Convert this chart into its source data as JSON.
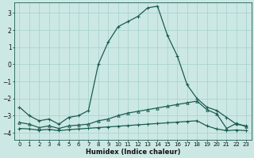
{
  "xlabel": "Humidex (Indice chaleur)",
  "bg_color": "#cce8e4",
  "grid_color": "#aad4cf",
  "line_color": "#1a5c52",
  "x_ticks": [
    0,
    1,
    2,
    3,
    4,
    5,
    6,
    7,
    8,
    9,
    10,
    11,
    12,
    13,
    14,
    15,
    16,
    17,
    18,
    19,
    20,
    21,
    22,
    23
  ],
  "y_ticks": [
    -4,
    -3,
    -2,
    -1,
    0,
    1,
    2,
    3
  ],
  "ylim": [
    -4.4,
    3.6
  ],
  "xlim": [
    -0.5,
    23.5
  ],
  "line1_x": [
    0,
    1,
    2,
    3,
    4,
    5,
    6,
    7,
    8,
    9,
    10,
    11,
    12,
    13,
    14,
    15,
    16,
    17,
    18,
    19,
    20,
    21,
    22,
    23
  ],
  "line1_y": [
    -2.5,
    -3.0,
    -3.3,
    -3.2,
    -3.5,
    -3.1,
    -3.0,
    -2.7,
    0.0,
    1.3,
    2.2,
    2.5,
    2.8,
    3.3,
    3.4,
    1.7,
    0.5,
    -1.2,
    -2.0,
    -2.5,
    -2.7,
    -3.1,
    -3.5,
    -3.6
  ],
  "line2_x": [
    0,
    1,
    2,
    3,
    4,
    5,
    6,
    7,
    8,
    9,
    10,
    11,
    12,
    13,
    14,
    15,
    16,
    17,
    18,
    19,
    20,
    21,
    22,
    23
  ],
  "line2_y": [
    -3.4,
    -3.5,
    -3.7,
    -3.6,
    -3.75,
    -3.6,
    -3.55,
    -3.5,
    -3.3,
    -3.2,
    -3.0,
    -2.85,
    -2.75,
    -2.65,
    -2.55,
    -2.45,
    -2.35,
    -2.25,
    -2.15,
    -2.65,
    -2.9,
    -3.75,
    -3.45,
    -3.65
  ],
  "line3_x": [
    0,
    1,
    2,
    3,
    4,
    5,
    6,
    7,
    8,
    9,
    10,
    11,
    12,
    13,
    14,
    15,
    16,
    17,
    18,
    19,
    20,
    21,
    22,
    23
  ],
  "line3_y": [
    -3.75,
    -3.78,
    -3.85,
    -3.8,
    -3.88,
    -3.82,
    -3.78,
    -3.74,
    -3.7,
    -3.66,
    -3.62,
    -3.58,
    -3.54,
    -3.5,
    -3.46,
    -3.42,
    -3.38,
    -3.34,
    -3.3,
    -3.6,
    -3.78,
    -3.88,
    -3.84,
    -3.88
  ]
}
